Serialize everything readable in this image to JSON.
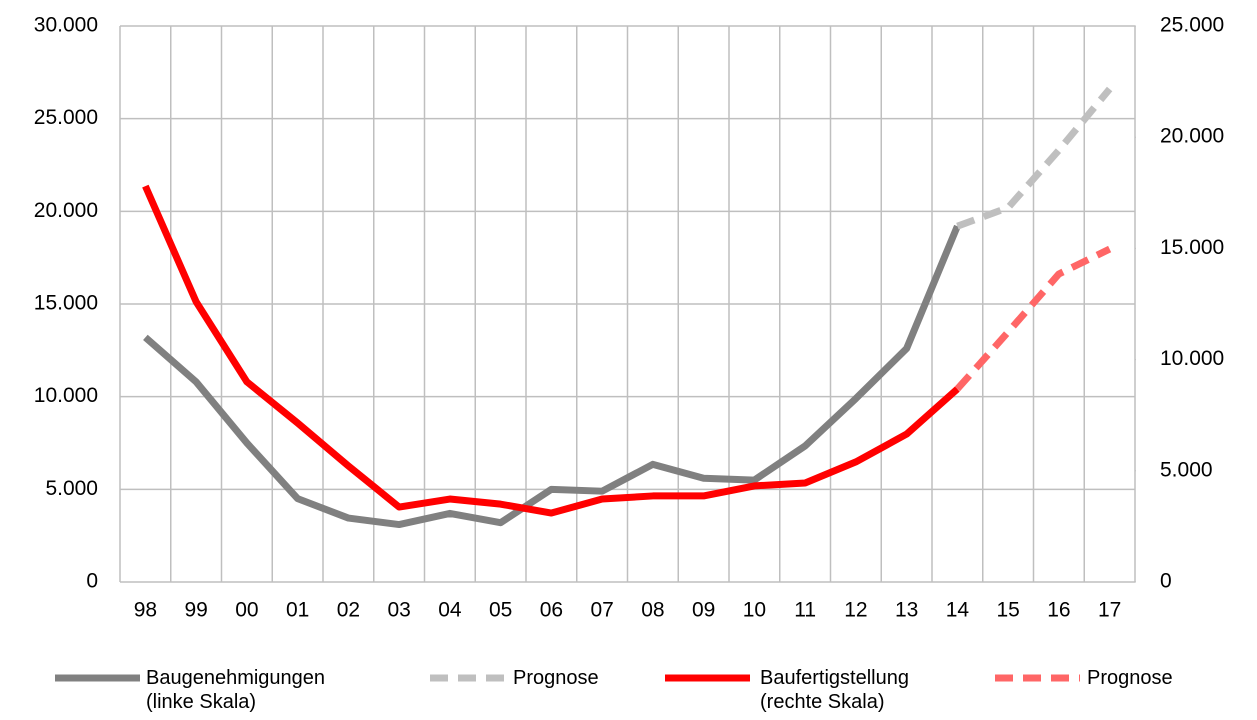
{
  "chart_data": {
    "type": "line",
    "categories": [
      "98",
      "99",
      "00",
      "01",
      "02",
      "03",
      "04",
      "05",
      "06",
      "07",
      "08",
      "09",
      "10",
      "11",
      "12",
      "13",
      "14",
      "15",
      "16",
      "17"
    ],
    "ylim": [
      0,
      30000
    ],
    "yticks": [
      {
        "value": 0,
        "label": "0"
      },
      {
        "value": 5000,
        "label": "5.000"
      },
      {
        "value": 10000,
        "label": "10.000"
      },
      {
        "value": 15000,
        "label": "15.000"
      },
      {
        "value": 20000,
        "label": "20.000"
      },
      {
        "value": 25000,
        "label": "25.000"
      },
      {
        "value": 30000,
        "label": "30.000"
      }
    ],
    "y2lim": [
      0,
      25000
    ],
    "y2ticks": [
      {
        "value": 0,
        "label": "0"
      },
      {
        "value": 5000,
        "label": "5.000"
      },
      {
        "value": 10000,
        "label": "10.000"
      },
      {
        "value": 15000,
        "label": "15.000"
      },
      {
        "value": 20000,
        "label": "20.000"
      },
      {
        "value": 25000,
        "label": "25.000"
      }
    ],
    "grid": true,
    "legend": "bottom",
    "series": [
      {
        "name": "Baugenehmigungen\n(linke Skala)",
        "color": "#808080",
        "dashed": false,
        "axis": "y",
        "values": [
          13200,
          10800,
          7500,
          4500,
          3450,
          3100,
          3700,
          3200,
          5000,
          4900,
          6350,
          5600,
          5500,
          7340,
          9900,
          12600,
          19200,
          null,
          null,
          null
        ]
      },
      {
        "name": "Prognose",
        "color": "#bfbfbf",
        "dashed": true,
        "axis": "y",
        "values": [
          null,
          null,
          null,
          null,
          null,
          null,
          null,
          null,
          null,
          null,
          null,
          null,
          null,
          null,
          null,
          null,
          19200,
          20200,
          23300,
          26600
        ]
      },
      {
        "name": "Baufertigstellung\n(rechte Skala)",
        "color": "#ff0000",
        "dashed": false,
        "axis": "y2",
        "values": [
          17800,
          12600,
          9000,
          7150,
          5220,
          3370,
          3730,
          3500,
          3100,
          3730,
          3870,
          3870,
          4320,
          4450,
          5400,
          6650,
          8680,
          null,
          null,
          null
        ]
      },
      {
        "name": "Prognose",
        "color": "#ff6666",
        "dashed": true,
        "axis": "y2",
        "values": [
          null,
          null,
          null,
          null,
          null,
          null,
          null,
          null,
          null,
          null,
          null,
          null,
          null,
          null,
          null,
          null,
          8680,
          11240,
          13850,
          14970
        ]
      }
    ]
  }
}
